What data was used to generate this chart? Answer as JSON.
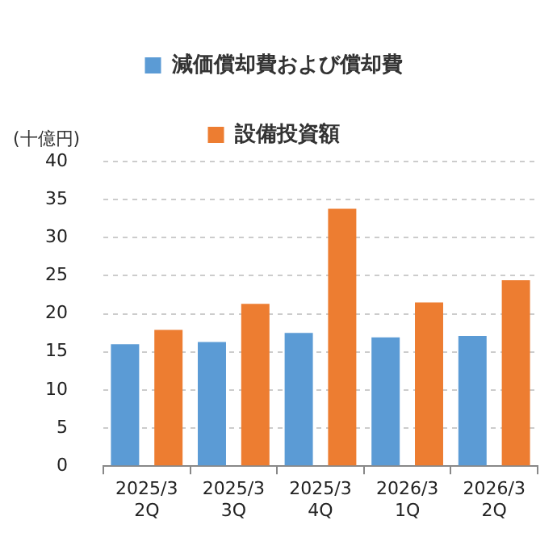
{
  "chart_data": {
    "type": "bar",
    "ylabel": "(十億円)",
    "categories": [
      "2025/3\n2Q",
      "2025/3\n3Q",
      "2025/3\n4Q",
      "2026/3\n1Q",
      "2026/3\n2Q"
    ],
    "series": [
      {
        "name": "減価償却費および償却費",
        "color": "#5b9bd5",
        "values": [
          16.0,
          16.3,
          17.5,
          16.9,
          17.1
        ]
      },
      {
        "name": "設備投資額",
        "color": "#ed7d31",
        "values": [
          17.9,
          21.3,
          33.8,
          21.5,
          24.4
        ]
      }
    ],
    "ylim": [
      0,
      40
    ],
    "yticks": [
      0,
      5,
      10,
      15,
      20,
      25,
      30,
      35,
      40
    ],
    "grid": "y",
    "legend": "top"
  }
}
